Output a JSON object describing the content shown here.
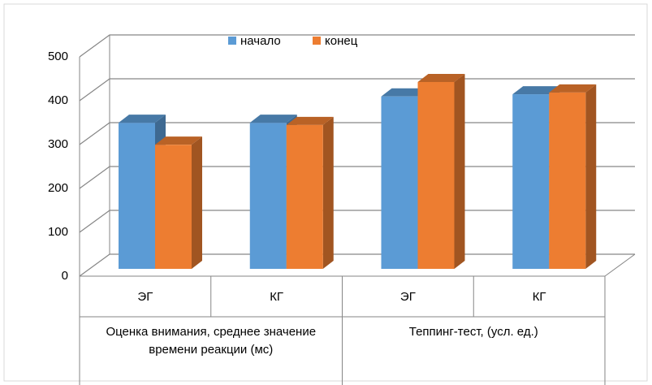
{
  "chart_data": {
    "type": "bar3d",
    "categories": [
      "ЭГ",
      "КГ",
      "ЭГ",
      "КГ"
    ],
    "groups": [
      "Оценка внимания, среднее значение времени реакции (мс)",
      "Теппинг-тест,  (усл. ед.)"
    ],
    "series": [
      {
        "name": "начало",
        "color": "#5b9bd5",
        "values": [
          333,
          333,
          393,
          398
        ]
      },
      {
        "name": "конец",
        "color": "#ed7d31",
        "values": [
          283,
          328,
          426,
          402
        ]
      }
    ],
    "ylim": [
      0,
      500
    ],
    "yticks": [
      0,
      100,
      200,
      300,
      400,
      500
    ],
    "grid": true,
    "legend": "top"
  }
}
